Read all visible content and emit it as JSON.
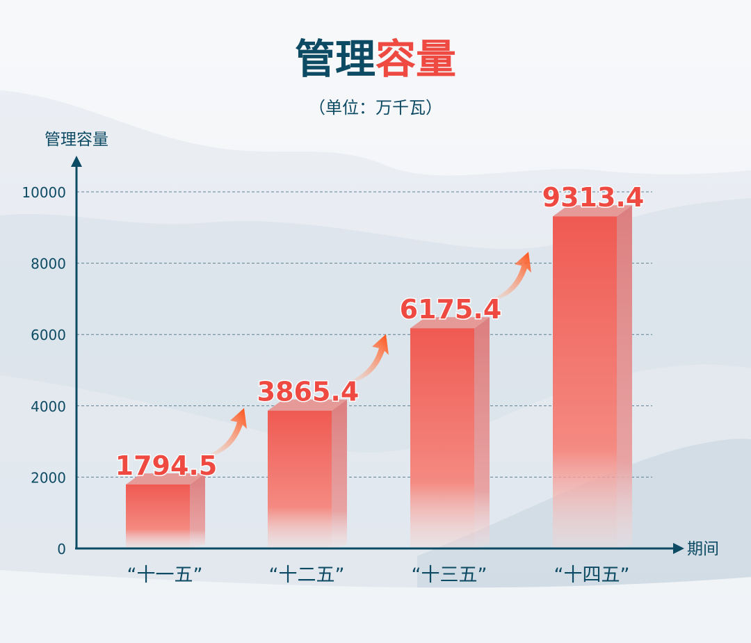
{
  "chart_data": {
    "type": "bar",
    "title_part1": "管理",
    "title_part2": "容量",
    "subtitle": "（单位：万千瓦）",
    "ylabel": "管理容量",
    "xlabel": "期间",
    "categories": [
      "“十一五”",
      "“十二五”",
      "“十三五”",
      "“十四五”"
    ],
    "values": [
      1794.5,
      3865.4,
      6175.4,
      9313.4
    ],
    "value_labels": [
      "1794.5",
      "3865.4",
      "6175.4",
      "9313.4"
    ],
    "ylim": [
      0,
      10000
    ],
    "yticks": [
      "0",
      "2000",
      "4000",
      "6000",
      "8000",
      "10000"
    ],
    "grid": true,
    "colors": {
      "title_dark": "#0d4a63",
      "title_accent": "#ee4a42",
      "bar": "#ef5f57",
      "arrow": "#ff5a1f",
      "axis": "#0d4a63"
    }
  }
}
